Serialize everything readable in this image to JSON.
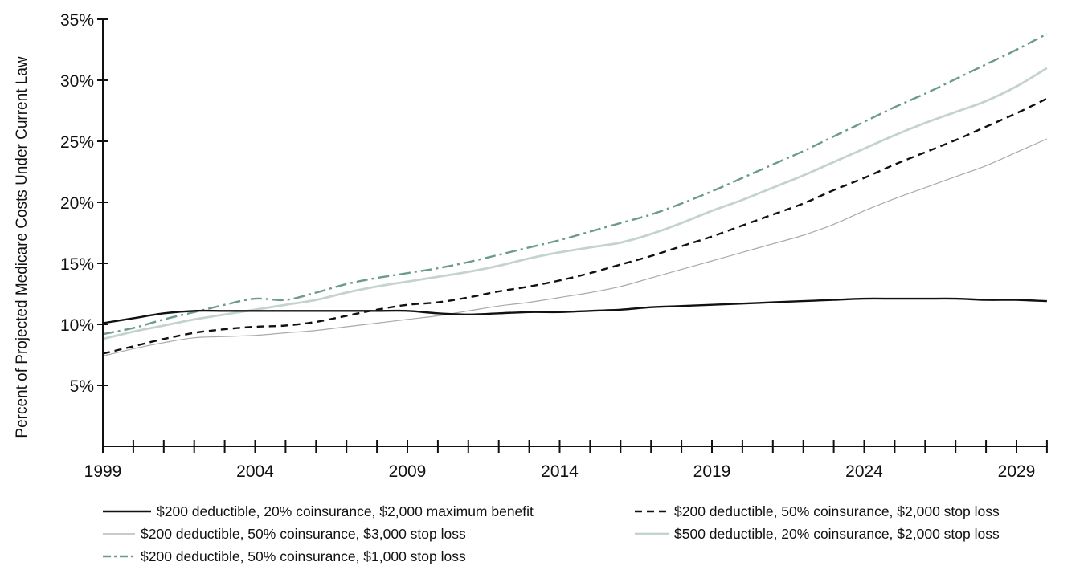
{
  "chart_data": {
    "type": "line",
    "title": "",
    "xlabel": "",
    "ylabel": "Percent of Projected Medicare Costs Under Current Law",
    "xlim": [
      1999,
      2030
    ],
    "ylim": [
      0,
      35
    ],
    "grid": false,
    "legend_position": "bottom",
    "x_ticks": [
      1999,
      2004,
      2009,
      2014,
      2019,
      2024,
      2029
    ],
    "x_tick_labels": [
      "1999",
      "2004",
      "2009",
      "2014",
      "2019",
      "2024",
      "2029"
    ],
    "y_ticks": [
      5,
      10,
      15,
      20,
      25,
      30,
      35
    ],
    "y_tick_labels": [
      "5%",
      "10%",
      "15%",
      "20%",
      "25%",
      "30%",
      "35%"
    ],
    "x": [
      1999,
      2000,
      2001,
      2002,
      2003,
      2004,
      2005,
      2006,
      2007,
      2008,
      2009,
      2010,
      2011,
      2012,
      2013,
      2014,
      2015,
      2016,
      2017,
      2018,
      2019,
      2020,
      2021,
      2022,
      2023,
      2024,
      2025,
      2026,
      2027,
      2028,
      2029,
      2030
    ],
    "series": [
      {
        "name": "$200 deductible, 20% coinsurance, $2,000 maximum benefit",
        "color": "#111111",
        "style": "solid",
        "values": [
          10.1,
          10.5,
          10.9,
          11.1,
          11.1,
          11.1,
          11.1,
          11.1,
          11.1,
          11.1,
          11.1,
          10.9,
          10.8,
          10.9,
          11.0,
          11.0,
          11.1,
          11.2,
          11.4,
          11.5,
          11.6,
          11.7,
          11.8,
          11.9,
          12.0,
          12.1,
          12.1,
          12.1,
          12.1,
          12.0,
          12.0,
          11.9
        ]
      },
      {
        "name": "$200 deductible, 50% coinsurance, $2,000 stop loss",
        "color": "#111111",
        "style": "dashed",
        "values": [
          7.6,
          8.2,
          8.8,
          9.3,
          9.6,
          9.8,
          9.9,
          10.2,
          10.7,
          11.2,
          11.6,
          11.8,
          12.2,
          12.7,
          13.1,
          13.6,
          14.2,
          14.9,
          15.6,
          16.4,
          17.2,
          18.1,
          19.0,
          19.9,
          21.0,
          22.0,
          23.1,
          24.1,
          25.1,
          26.2,
          27.3,
          28.5
        ]
      },
      {
        "name": "$200 deductible, 50% coinsurance, $3,000 stop loss",
        "color": "#aaaaaa",
        "style": "solid-thin",
        "values": [
          7.4,
          8.0,
          8.5,
          8.9,
          9.0,
          9.1,
          9.3,
          9.5,
          9.8,
          10.1,
          10.4,
          10.7,
          11.1,
          11.5,
          11.8,
          12.2,
          12.6,
          13.1,
          13.8,
          14.5,
          15.2,
          15.9,
          16.6,
          17.3,
          18.2,
          19.3,
          20.3,
          21.2,
          22.1,
          23.0,
          24.1,
          25.2
        ]
      },
      {
        "name": "$500 deductible, 20% coinsurance, $2,000 stop loss",
        "color": "#c4d4cd",
        "style": "solid-thick",
        "values": [
          8.8,
          9.4,
          9.9,
          10.4,
          10.8,
          11.2,
          11.6,
          12.0,
          12.6,
          13.1,
          13.5,
          13.9,
          14.3,
          14.8,
          15.4,
          15.9,
          16.3,
          16.7,
          17.4,
          18.3,
          19.3,
          20.2,
          21.2,
          22.2,
          23.3,
          24.4,
          25.5,
          26.5,
          27.4,
          28.3,
          29.5,
          31.0
        ]
      },
      {
        "name": "$200 deductible, 50% coinsurance, $1,000 stop loss",
        "color": "#6b9b8a",
        "style": "dashdot",
        "values": [
          9.2,
          9.7,
          10.4,
          11.0,
          11.6,
          12.1,
          12.0,
          12.6,
          13.3,
          13.8,
          14.2,
          14.6,
          15.1,
          15.7,
          16.3,
          16.9,
          17.6,
          18.3,
          19.0,
          19.9,
          20.9,
          22.0,
          23.1,
          24.2,
          25.4,
          26.6,
          27.8,
          28.9,
          30.1,
          31.3,
          32.5,
          33.8
        ]
      }
    ]
  }
}
